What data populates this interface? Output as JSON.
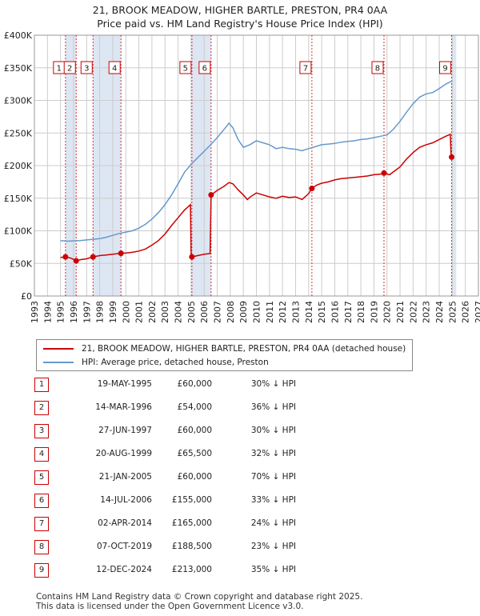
{
  "title_line1": "21, BROOK MEADOW, HIGHER BARTLE, PRESTON, PR4 0AA",
  "title_line2": "Price paid vs. HM Land Registry's House Price Index (HPI)",
  "legend": {
    "red_label": "21, BROOK MEADOW, HIGHER BARTLE, PRESTON, PR4 0AA (detached house)",
    "blue_label": "HPI: Average price, detached house, Preston"
  },
  "colors": {
    "red": "#cc0000",
    "blue": "#6699cc",
    "band": "#dde6f3",
    "grid": "#cccccc"
  },
  "sales": [
    {
      "n": "1",
      "date": "19-MAY-1995",
      "price": "£60,000",
      "hpi": "30% ↓ HPI"
    },
    {
      "n": "2",
      "date": "14-MAR-1996",
      "price": "£54,000",
      "hpi": "36% ↓ HPI"
    },
    {
      "n": "3",
      "date": "27-JUN-1997",
      "price": "£60,000",
      "hpi": "30% ↓ HPI"
    },
    {
      "n": "4",
      "date": "20-AUG-1999",
      "price": "£65,500",
      "hpi": "32% ↓ HPI"
    },
    {
      "n": "5",
      "date": "21-JAN-2005",
      "price": "£60,000",
      "hpi": "70% ↓ HPI"
    },
    {
      "n": "6",
      "date": "14-JUL-2006",
      "price": "£155,000",
      "hpi": "33% ↓ HPI"
    },
    {
      "n": "7",
      "date": "02-APR-2014",
      "price": "£165,000",
      "hpi": "24% ↓ HPI"
    },
    {
      "n": "8",
      "date": "07-OCT-2019",
      "price": "£188,500",
      "hpi": "23% ↓ HPI"
    },
    {
      "n": "9",
      "date": "12-DEC-2024",
      "price": "£213,000",
      "hpi": "35% ↓ HPI"
    }
  ],
  "footer_line1": "Contains HM Land Registry data © Crown copyright and database right 2025.",
  "footer_line2": "This data is licensed under the Open Government Licence v3.0.",
  "chart_data": {
    "type": "line",
    "xlim": [
      1993,
      2027
    ],
    "ylim": [
      0,
      400000
    ],
    "x_ticks": [
      1993,
      1994,
      1995,
      1996,
      1997,
      1998,
      1999,
      2000,
      2001,
      2002,
      2003,
      2004,
      2005,
      2006,
      2007,
      2008,
      2009,
      2010,
      2011,
      2012,
      2013,
      2014,
      2015,
      2016,
      2017,
      2018,
      2019,
      2020,
      2021,
      2022,
      2023,
      2024,
      2025,
      2026,
      2027
    ],
    "y_ticks": [
      {
        "v": 0,
        "label": "£0"
      },
      {
        "v": 50000,
        "label": "£50K"
      },
      {
        "v": 100000,
        "label": "£100K"
      },
      {
        "v": 150000,
        "label": "£150K"
      },
      {
        "v": 200000,
        "label": "£200K"
      },
      {
        "v": 250000,
        "label": "£250K"
      },
      {
        "v": 300000,
        "label": "£300K"
      },
      {
        "v": 350000,
        "label": "£350K"
      },
      {
        "v": 400000,
        "label": "£400K"
      }
    ],
    "grid": true,
    "shaded_spans": [
      [
        1995.38,
        1996.2
      ],
      [
        1997.49,
        1999.63
      ],
      [
        2005.06,
        2006.53
      ],
      [
        2024.95,
        2025.3
      ]
    ],
    "sale_points": [
      {
        "label": "1",
        "x": 1995.38,
        "y": 60000
      },
      {
        "label": "2",
        "x": 1996.2,
        "y": 54000
      },
      {
        "label": "3",
        "x": 1997.49,
        "y": 60000
      },
      {
        "label": "4",
        "x": 1999.63,
        "y": 65500
      },
      {
        "label": "5",
        "x": 2005.06,
        "y": 60000
      },
      {
        "label": "6",
        "x": 2006.53,
        "y": 155000
      },
      {
        "label": "7",
        "x": 2014.25,
        "y": 165000
      },
      {
        "label": "8",
        "x": 2019.77,
        "y": 188500
      },
      {
        "label": "9",
        "x": 2024.95,
        "y": 213000
      }
    ],
    "series": [
      {
        "name": "21, BROOK MEADOW, HIGHER BARTLE, PRESTON, PR4 0AA (detached house)",
        "color": "#cc0000",
        "points": [
          [
            1995.0,
            59000
          ],
          [
            1995.38,
            60000
          ],
          [
            1995.8,
            58000
          ],
          [
            1996.2,
            54000
          ],
          [
            1996.6,
            56000
          ],
          [
            1997.0,
            57000
          ],
          [
            1997.49,
            60000
          ],
          [
            1998.0,
            62000
          ],
          [
            1998.5,
            63000
          ],
          [
            1999.0,
            64000
          ],
          [
            1999.63,
            65500
          ],
          [
            2000.0,
            66000
          ],
          [
            2000.5,
            67000
          ],
          [
            2001.0,
            69000
          ],
          [
            2001.5,
            72000
          ],
          [
            2002.0,
            78000
          ],
          [
            2002.5,
            85000
          ],
          [
            2003.0,
            95000
          ],
          [
            2003.5,
            108000
          ],
          [
            2004.0,
            120000
          ],
          [
            2004.5,
            132000
          ],
          [
            2004.95,
            140000
          ],
          [
            2005.0,
            62000
          ],
          [
            2005.06,
            60000
          ],
          [
            2005.5,
            62000
          ],
          [
            2006.0,
            64000
          ],
          [
            2006.45,
            65000
          ],
          [
            2006.53,
            155000
          ],
          [
            2007.0,
            162000
          ],
          [
            2007.5,
            168000
          ],
          [
            2007.9,
            174000
          ],
          [
            2008.2,
            172000
          ],
          [
            2008.6,
            163000
          ],
          [
            2009.0,
            155000
          ],
          [
            2009.3,
            148000
          ],
          [
            2009.6,
            153000
          ],
          [
            2010.0,
            158000
          ],
          [
            2010.5,
            155000
          ],
          [
            2011.0,
            152000
          ],
          [
            2011.5,
            150000
          ],
          [
            2012.0,
            153000
          ],
          [
            2012.5,
            151000
          ],
          [
            2013.0,
            152000
          ],
          [
            2013.5,
            148000
          ],
          [
            2014.0,
            157000
          ],
          [
            2014.25,
            165000
          ],
          [
            2014.6,
            170000
          ],
          [
            2015.0,
            173000
          ],
          [
            2015.5,
            175000
          ],
          [
            2016.0,
            178000
          ],
          [
            2016.5,
            180000
          ],
          [
            2017.0,
            181000
          ],
          [
            2017.5,
            182000
          ],
          [
            2018.0,
            183000
          ],
          [
            2018.5,
            184000
          ],
          [
            2019.0,
            186000
          ],
          [
            2019.5,
            187000
          ],
          [
            2019.77,
            188500
          ],
          [
            2020.2,
            186000
          ],
          [
            2020.6,
            192000
          ],
          [
            2021.0,
            198000
          ],
          [
            2021.5,
            210000
          ],
          [
            2022.0,
            220000
          ],
          [
            2022.5,
            228000
          ],
          [
            2023.0,
            232000
          ],
          [
            2023.5,
            235000
          ],
          [
            2024.0,
            240000
          ],
          [
            2024.5,
            245000
          ],
          [
            2024.85,
            248000
          ],
          [
            2024.9,
            220000
          ],
          [
            2024.95,
            213000
          ],
          [
            2025.1,
            214000
          ]
        ]
      },
      {
        "name": "HPI: Average price, detached house, Preston",
        "color": "#6699cc",
        "points": [
          [
            1995.0,
            85000
          ],
          [
            1995.5,
            84000
          ],
          [
            1996.0,
            84500
          ],
          [
            1996.5,
            85000
          ],
          [
            1997.0,
            86000
          ],
          [
            1997.5,
            87000
          ],
          [
            1998.0,
            88000
          ],
          [
            1998.5,
            90000
          ],
          [
            1999.0,
            93000
          ],
          [
            1999.5,
            96000
          ],
          [
            2000.0,
            98000
          ],
          [
            2000.5,
            100000
          ],
          [
            2001.0,
            104000
          ],
          [
            2001.5,
            110000
          ],
          [
            2002.0,
            118000
          ],
          [
            2002.5,
            128000
          ],
          [
            2003.0,
            140000
          ],
          [
            2003.5,
            155000
          ],
          [
            2004.0,
            172000
          ],
          [
            2004.5,
            190000
          ],
          [
            2005.0,
            202000
          ],
          [
            2005.5,
            212000
          ],
          [
            2006.0,
            222000
          ],
          [
            2006.5,
            232000
          ],
          [
            2007.0,
            243000
          ],
          [
            2007.5,
            255000
          ],
          [
            2007.9,
            265000
          ],
          [
            2008.2,
            258000
          ],
          [
            2008.6,
            240000
          ],
          [
            2009.0,
            228000
          ],
          [
            2009.5,
            232000
          ],
          [
            2010.0,
            238000
          ],
          [
            2010.5,
            235000
          ],
          [
            2011.0,
            232000
          ],
          [
            2011.5,
            226000
          ],
          [
            2012.0,
            228000
          ],
          [
            2012.5,
            226000
          ],
          [
            2013.0,
            225000
          ],
          [
            2013.5,
            223000
          ],
          [
            2014.0,
            226000
          ],
          [
            2014.5,
            229000
          ],
          [
            2015.0,
            232000
          ],
          [
            2015.5,
            233000
          ],
          [
            2016.0,
            234000
          ],
          [
            2016.5,
            236000
          ],
          [
            2017.0,
            237000
          ],
          [
            2017.5,
            238000
          ],
          [
            2018.0,
            240000
          ],
          [
            2018.5,
            241000
          ],
          [
            2019.0,
            243000
          ],
          [
            2019.5,
            245000
          ],
          [
            2020.0,
            247000
          ],
          [
            2020.5,
            256000
          ],
          [
            2021.0,
            268000
          ],
          [
            2021.5,
            282000
          ],
          [
            2022.0,
            295000
          ],
          [
            2022.5,
            305000
          ],
          [
            2023.0,
            310000
          ],
          [
            2023.5,
            312000
          ],
          [
            2024.0,
            318000
          ],
          [
            2024.5,
            325000
          ],
          [
            2025.0,
            330000
          ]
        ]
      }
    ]
  }
}
